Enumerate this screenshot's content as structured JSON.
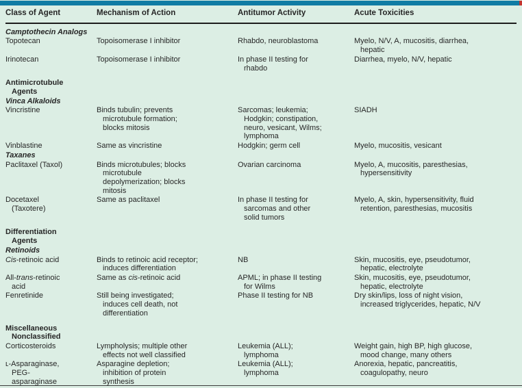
{
  "colors": {
    "background": "#dceee4",
    "top_bar": "#107ca4",
    "red_tick": "#c23530",
    "header_rule": "#1c1c1c",
    "bottom_rule": "#3a3a3a",
    "text": "#262626"
  },
  "table": {
    "headers": [
      "Class of Agent",
      "Mechanism of Action",
      "Antitumor Activity",
      "Acute Toxicities"
    ],
    "rows": [
      {
        "kind": "section",
        "style": "sub",
        "text": "Camptothecin Analogs"
      },
      {
        "kind": "drug",
        "agent": "Topotecan",
        "mechanism": "Topoisomerase I inhibitor",
        "activity": "Rhabdo, neuroblastoma",
        "toxicities": "Myelo, N/V, A, mucositis, diarrhea,\nhepatic"
      },
      {
        "kind": "drug",
        "agent": "Irinotecan",
        "mechanism": "Topoisomerase I inhibitor",
        "activity": "In phase II testing for\nrhabdo",
        "toxicities": "Diarrhea, myelo, N/V, hepatic"
      },
      {
        "kind": "section",
        "style": "major",
        "text": "Antimicrotubule\nAgents"
      },
      {
        "kind": "section",
        "style": "sub",
        "text": "Vinca Alkaloids"
      },
      {
        "kind": "drug",
        "agent": "Vincristine",
        "mechanism": "Binds tubulin; prevents\nmicrotubule formation;\nblocks mitosis",
        "activity": "Sarcomas; leukemia;\nHodgkin; constipation,\nneuro, vesicant, Wilms;\nlymphoma",
        "toxicities": "SIADH"
      },
      {
        "kind": "drug",
        "agent": "Vinblastine",
        "mechanism": "Same as vincristine",
        "activity": "Hodgkin; germ cell",
        "toxicities": "Myelo, mucositis, vesicant"
      },
      {
        "kind": "section",
        "style": "sub",
        "text": "Taxanes"
      },
      {
        "kind": "drug",
        "agent": "Paclitaxel (Taxol)",
        "mechanism": "Binds microtubules; blocks\nmicrotubule\ndepolymerization; blocks\nmitosis",
        "activity": "Ovarian carcinoma",
        "toxicities": "Myelo, A, mucositis, paresthesias,\nhypersensitivity"
      },
      {
        "kind": "drug",
        "agent": "Docetaxel\n(Taxotere)",
        "mechanism": "Same as paclitaxel",
        "activity": "In phase II testing for\nsarcomas and other\nsolid tumors",
        "toxicities": "Myelo, A, skin, hypersensitivity, fluid\nretention, paresthesias, mucositis"
      },
      {
        "kind": "section",
        "style": "major",
        "text": "Differentiation\nAgents"
      },
      {
        "kind": "section",
        "style": "sub",
        "text": "Retinoids"
      },
      {
        "kind": "drug",
        "agent": "*Cis*-retinoic acid",
        "mechanism": "Binds to retinoic acid receptor;\ninduces differentiation",
        "activity": "NB",
        "toxicities": "Skin, mucositis, eye, pseudotumor,\nhepatic, electrolyte"
      },
      {
        "kind": "drug",
        "agent": "All-*trans*-retinoic\nacid",
        "mechanism": "Same as *cis*-retinoic acid",
        "activity": "APML; in phase II testing\nfor Wilms",
        "toxicities": "Skin, mucositis, eye, pseudotumor,\nhepatic, electrolyte"
      },
      {
        "kind": "drug",
        "agent": "Fenretinide",
        "mechanism": "Still being investigated;\ninduces cell death, not\ndifferentiation",
        "activity": "Phase II testing for NB",
        "toxicities": "Dry skin/lips, loss of night vision,\nincreased triglycerides, hepatic, N/V"
      },
      {
        "kind": "section",
        "style": "major",
        "text": "Miscellaneous\nNonclassified"
      },
      {
        "kind": "drug",
        "agent": "Corticosteroids",
        "mechanism": "Lympholysis; multiple other\neffects not well classified",
        "activity": "Leukemia (ALL);\nlymphoma",
        "toxicities": "Weight gain, high BP, high glucose,\nmood change, many others"
      },
      {
        "kind": "drug",
        "agent": "ʟ-Asparaginase,\nPEG-\nasparaginase",
        "mechanism": "Asparagine depletion;\ninhibition of protein\nsynthesis",
        "activity": "Leukemia (ALL);\nlymphoma",
        "toxicities": "Anorexia, hepatic, pancreatitis,\ncoagulopathy, neuro"
      }
    ]
  }
}
